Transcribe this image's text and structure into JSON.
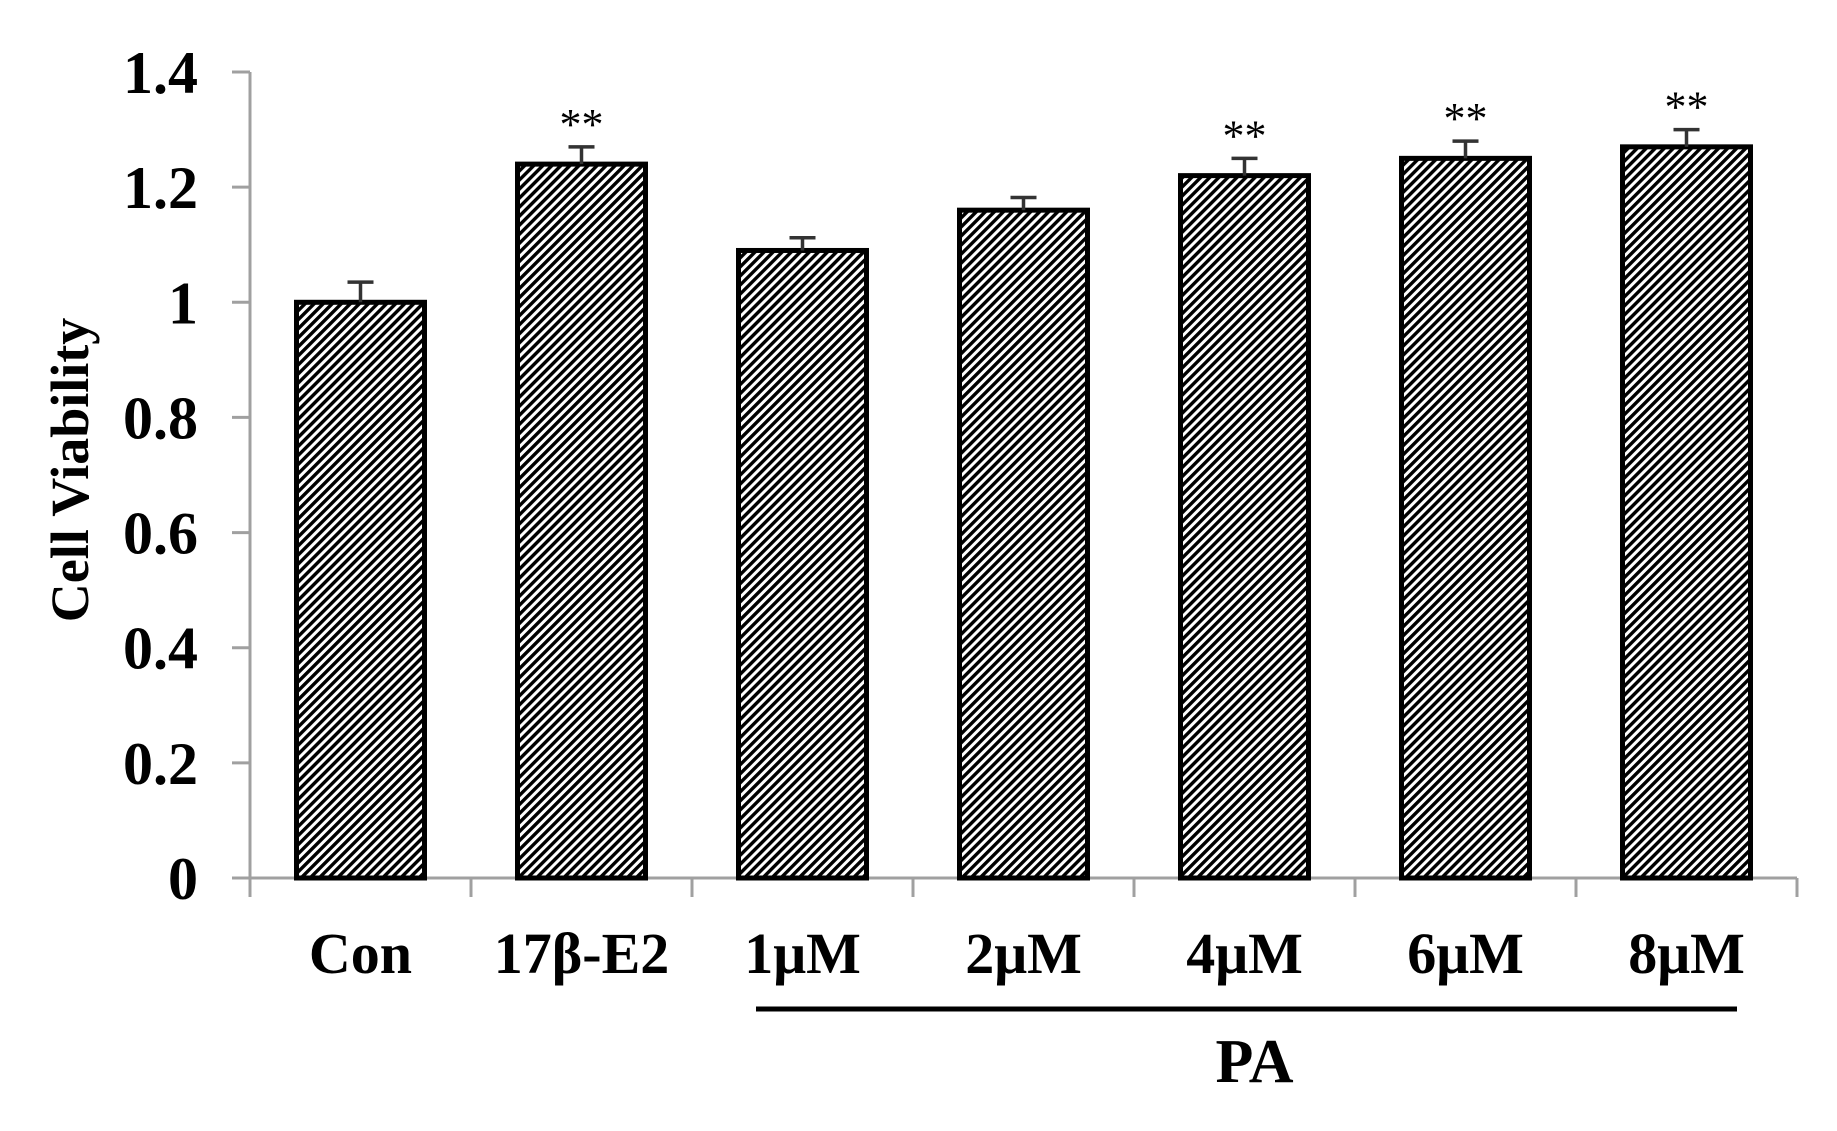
{
  "chart_data": {
    "type": "bar",
    "title": "",
    "xlabel": "",
    "ylabel": "Cell Viability",
    "ylim": [
      0,
      1.4
    ],
    "yticks": [
      0,
      0.2,
      0.4,
      0.6,
      0.8,
      1,
      1.2,
      1.4
    ],
    "ytick_labels": [
      "0",
      "0.2",
      "0.4",
      "0.6",
      "0.8",
      "1",
      "1.2",
      "1.4"
    ],
    "grid": false,
    "legend": null,
    "categories": [
      "Con",
      "17β-E2",
      "1μM",
      "2μM",
      "4μM",
      "6μM",
      "8μM"
    ],
    "values": [
      1.0,
      1.24,
      1.09,
      1.16,
      1.22,
      1.25,
      1.27
    ],
    "errors": [
      0.035,
      0.03,
      0.022,
      0.022,
      0.03,
      0.03,
      0.03
    ],
    "significance": [
      "",
      "**",
      "",
      "",
      "**",
      "**",
      "**"
    ],
    "group_annotations": [
      {
        "label": "PA",
        "categories": [
          "1μM",
          "2μM",
          "4μM",
          "6μM",
          "8μM"
        ]
      }
    ],
    "bar_style": {
      "fill": "diagonal-hatch",
      "edge_color": "#000000"
    }
  },
  "style": {
    "axis_color": "#a0a0a0",
    "bar_edge_color": "#000000",
    "hatch_color": "#000000",
    "background": "#ffffff"
  }
}
